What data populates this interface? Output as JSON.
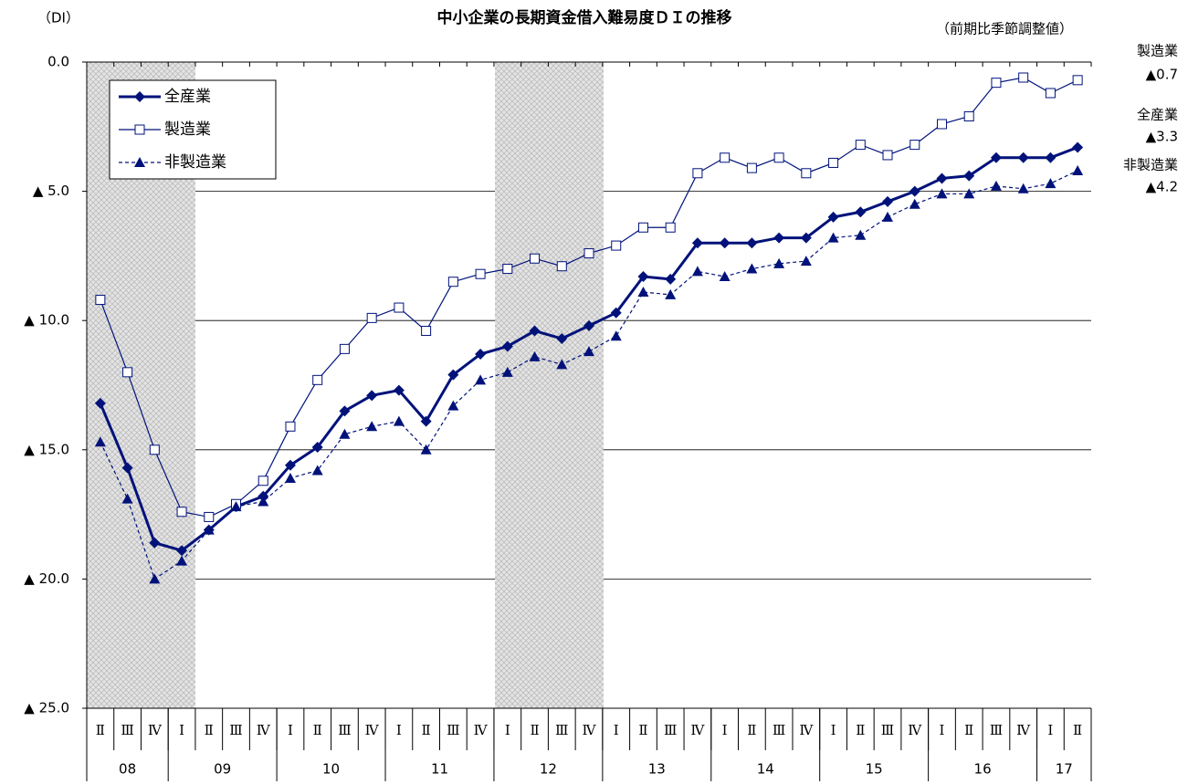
{
  "chart_data": {
    "type": "line",
    "title": "中小企業の長期資金借入難易度ＤＩの推移",
    "y_label": "（DI）",
    "subtitle": "（前期比季節調整値）",
    "categories": [
      "Ⅱ",
      "Ⅲ",
      "Ⅳ",
      "Ⅰ",
      "Ⅱ",
      "Ⅲ",
      "Ⅳ",
      "Ⅰ",
      "Ⅱ",
      "Ⅲ",
      "Ⅳ",
      "Ⅰ",
      "Ⅱ",
      "Ⅲ",
      "Ⅳ",
      "Ⅰ",
      "Ⅱ",
      "Ⅲ",
      "Ⅳ",
      "Ⅰ",
      "Ⅱ",
      "Ⅲ",
      "Ⅳ",
      "Ⅰ",
      "Ⅱ",
      "Ⅲ",
      "Ⅳ",
      "Ⅰ",
      "Ⅱ",
      "Ⅲ",
      "Ⅳ",
      "Ⅰ",
      "Ⅱ",
      "Ⅲ",
      "Ⅳ",
      "Ⅰ",
      "Ⅱ"
    ],
    "year_groups": [
      "08",
      "09",
      "10",
      "11",
      "12",
      "13",
      "14",
      "15",
      "16",
      "17"
    ],
    "ylim": [
      -25,
      0
    ],
    "yticks": [
      {
        "value": 0,
        "label": "0.0"
      },
      {
        "value": -5,
        "label": "▲ 5.0"
      },
      {
        "value": -10,
        "label": "▲ 10.0"
      },
      {
        "value": -15,
        "label": "▲ 15.0"
      },
      {
        "value": -20,
        "label": "▲ 20.0"
      },
      {
        "value": -25,
        "label": "▲ 25.0"
      }
    ],
    "grid": true,
    "series": [
      {
        "name": "全産業",
        "color": "#00127a",
        "marker": "diamond",
        "line_width": 3,
        "dashed": false,
        "values": [
          -13.2,
          -15.7,
          -18.6,
          -18.9,
          -18.1,
          -17.2,
          -16.8,
          -15.6,
          -14.9,
          -13.5,
          -12.9,
          -12.7,
          -13.9,
          -12.1,
          -11.3,
          -11.0,
          -10.4,
          -10.7,
          -10.2,
          -9.7,
          -8.3,
          -8.4,
          -7.0,
          -7.0,
          -7.0,
          -6.8,
          -6.8,
          -6.0,
          -5.8,
          -5.4,
          -5.0,
          -4.5,
          -4.4,
          -3.7,
          -3.7,
          -3.7,
          -3.3
        ],
        "value_labels": [
          null,
          null,
          null,
          null,
          null,
          null,
          null,
          null,
          null,
          null,
          null,
          null,
          null,
          null,
          null,
          null,
          null,
          null,
          null,
          null,
          null,
          null,
          null,
          null,
          null,
          null,
          null,
          null,
          null,
          null,
          null,
          null,
          null,
          null,
          null,
          null,
          "▲3.3"
        ]
      },
      {
        "name": "製造業",
        "color": "#00127a",
        "marker": "square",
        "line_width": 1.2,
        "dashed": false,
        "values": [
          -9.2,
          -12.0,
          -15.0,
          -17.4,
          -17.6,
          -17.1,
          -16.2,
          -14.1,
          -12.3,
          -11.1,
          -9.9,
          -9.5,
          -10.4,
          -8.5,
          -8.2,
          -8.0,
          -7.6,
          -7.9,
          -7.4,
          -7.1,
          -6.4,
          -6.4,
          -4.3,
          -3.7,
          -4.1,
          -3.7,
          -4.3,
          -3.9,
          -3.2,
          -3.6,
          -3.2,
          -2.4,
          -2.1,
          -0.8,
          -0.6,
          -1.2,
          -0.7
        ],
        "value_labels": [
          null,
          null,
          null,
          null,
          null,
          null,
          null,
          null,
          null,
          null,
          null,
          null,
          null,
          null,
          null,
          null,
          null,
          null,
          null,
          null,
          null,
          null,
          null,
          null,
          null,
          null,
          null,
          null,
          null,
          null,
          null,
          null,
          null,
          null,
          null,
          null,
          "▲0.7"
        ]
      },
      {
        "name": "非製造業",
        "color": "#00127a",
        "marker": "triangle",
        "line_width": 1.2,
        "dashed": true,
        "values": [
          -14.7,
          -16.9,
          -20.0,
          -19.3,
          -18.1,
          -17.2,
          -17.0,
          -16.1,
          -15.8,
          -14.4,
          -14.1,
          -13.9,
          -15.0,
          -13.3,
          -12.3,
          -12.0,
          -11.4,
          -11.7,
          -11.2,
          -10.6,
          -8.9,
          -9.0,
          -8.1,
          -8.3,
          -8.0,
          -7.8,
          -7.7,
          -6.8,
          -6.7,
          -6.0,
          -5.5,
          -5.1,
          -5.1,
          -4.8,
          -4.9,
          -4.7,
          -4.2
        ],
        "value_labels": [
          null,
          null,
          null,
          null,
          null,
          null,
          null,
          null,
          null,
          null,
          null,
          null,
          null,
          null,
          null,
          null,
          null,
          null,
          null,
          null,
          null,
          null,
          null,
          null,
          null,
          null,
          null,
          null,
          null,
          null,
          null,
          null,
          null,
          null,
          null,
          null,
          "▲4.2"
        ]
      }
    ]
  }
}
